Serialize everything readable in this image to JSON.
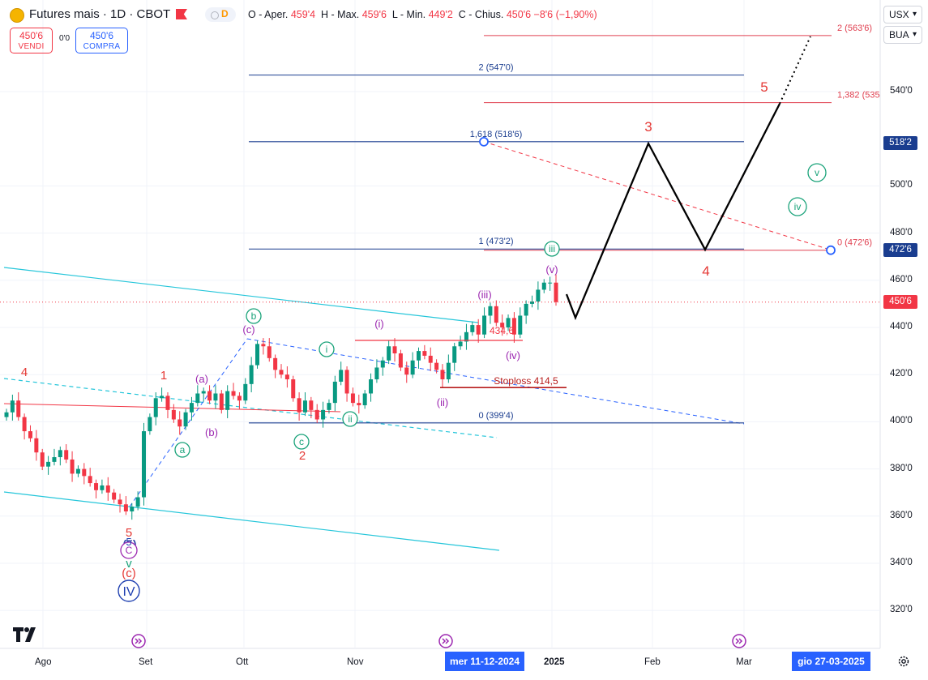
{
  "header": {
    "symbol_title": "Futures mais · 1D · CBOT",
    "interval_badge": "D",
    "ohlc": {
      "o_label": "O",
      "o_text": "- Aper.",
      "o_value": "459'4",
      "h_label": "H",
      "h_text": "- Max.",
      "h_value": "459'6",
      "l_label": "L",
      "l_text": "- Min.",
      "l_value": "449'2",
      "c_label": "C",
      "c_text": "- Chius.",
      "c_value": "450'6",
      "change": "−8'6 (−1,90%)"
    }
  },
  "trade": {
    "sell_price": "450'6",
    "sell_label": "VENDI",
    "spread": "0'0",
    "buy_price": "450'6",
    "buy_label": "COMPRA"
  },
  "axis_controls": {
    "currency": "USX",
    "unit": "BUA"
  },
  "colors": {
    "up": "#089981",
    "down": "#f23645",
    "blue": "#2962ff",
    "navy": "#1a3d8f",
    "teal": "#26c6da",
    "purple": "#9c27b0",
    "green": "#1aa37a",
    "black": "#000000"
  },
  "chart_data": {
    "type": "candlestick",
    "title": "Futures mais · 1D · CBOT",
    "ylim": [
      314,
      578
    ],
    "y_ticks": [
      "540'0",
      "500'0",
      "480'0",
      "460'0",
      "440'0",
      "420'0",
      "400'0",
      "380'0",
      "360'0",
      "340'0",
      "320'0"
    ],
    "x_ticks": [
      "Ago",
      "Set",
      "Ott",
      "Nov",
      "2025",
      "Feb",
      "Mar"
    ],
    "cursor_date_label": "mer 11-12-2024",
    "end_date_label": "gio 27-03-2025",
    "last_price_tag": "450'6",
    "price_tags": [
      "518'2",
      "472'6"
    ],
    "closes": [
      404,
      409,
      402,
      396,
      393,
      387,
      381,
      383,
      385,
      388,
      384,
      378,
      380,
      377,
      374,
      371,
      373,
      370,
      367,
      365,
      362,
      364,
      368,
      396,
      402,
      410,
      411,
      405,
      401,
      398,
      404,
      408,
      412,
      413,
      409,
      412,
      405,
      413,
      411,
      409,
      416,
      424,
      433,
      432,
      427,
      422,
      420,
      418,
      410,
      404,
      409,
      405,
      401,
      405,
      408,
      417,
      422,
      412,
      408,
      407,
      412,
      418,
      423,
      426,
      432,
      429,
      423,
      420,
      426,
      430,
      428,
      425,
      422,
      418,
      425,
      432,
      434,
      438,
      441,
      437,
      445,
      449,
      442,
      440,
      444,
      437,
      445,
      450,
      451,
      456,
      459,
      459,
      450.75
    ],
    "fib_levels": [
      {
        "label": "0 (399'4)",
        "value": 399.5
      },
      {
        "label": "1 (473'2)",
        "value": 473.25
      },
      {
        "label": "1,618 (518'6)",
        "value": 518.75
      },
      {
        "label": "2 (547'0)",
        "value": 547
      }
    ],
    "fib_levels_red": [
      {
        "label": "0 (472'6)",
        "value": 472.75
      },
      {
        "label": "1,382 (535",
        "value": 535.3
      },
      {
        "label": "2 (563'6)",
        "value": 563.75
      }
    ],
    "annotations": {
      "stoploss": "Stoploss 414,5",
      "level_434": "434,6",
      "wave_labels_red": [
        "4",
        "1",
        "2",
        "3",
        "4",
        "5",
        "5"
      ],
      "wave_labels_purple": [
        "(a)",
        "(b)",
        "(c)",
        "(i)",
        "(ii)",
        "(iii)",
        "(iv)",
        "(v)",
        "(5)",
        "(c)"
      ],
      "wave_labels_green": [
        "a",
        "b",
        "c",
        "i",
        "ii",
        "iii",
        "iv",
        "v",
        "C",
        "v"
      ],
      "wave_labels_blue": [
        "IV",
        "5"
      ]
    }
  }
}
